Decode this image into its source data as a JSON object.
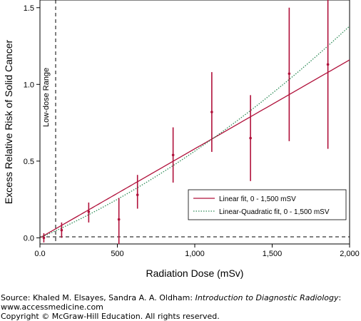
{
  "chart_data": {
    "type": "scatter",
    "xlabel": "Radiation Dose (mSv)",
    "ylabel": "Excess Relative Risk of Solid Cancer",
    "xlim": [
      0,
      2000
    ],
    "ylim": [
      -0.04,
      1.55
    ],
    "x_ticks": [
      0,
      500,
      1000,
      1500,
      2000
    ],
    "x_tick_labels": [
      "0.0",
      "500",
      "1,000",
      "1,500",
      "2,000"
    ],
    "y_ticks": [
      0.0,
      0.5,
      1.0,
      1.5
    ],
    "y_tick_labels": [
      "0.0",
      "0.5",
      "1.0",
      "1.5"
    ],
    "grid": false,
    "points": [
      {
        "x": 25,
        "y": 0.0,
        "lo": -0.03,
        "hi": 0.03
      },
      {
        "x": 140,
        "y": 0.05,
        "lo": 0.0,
        "hi": 0.1
      },
      {
        "x": 315,
        "y": 0.17,
        "lo": 0.1,
        "hi": 0.23
      },
      {
        "x": 510,
        "y": 0.12,
        "lo": -0.04,
        "hi": 0.26
      },
      {
        "x": 630,
        "y": 0.28,
        "lo": 0.19,
        "hi": 0.41
      },
      {
        "x": 860,
        "y": 0.54,
        "lo": 0.36,
        "hi": 0.72
      },
      {
        "x": 1110,
        "y": 0.82,
        "lo": 0.56,
        "hi": 1.08
      },
      {
        "x": 1360,
        "y": 0.65,
        "lo": 0.37,
        "hi": 0.93
      },
      {
        "x": 1610,
        "y": 1.07,
        "lo": 0.63,
        "hi": 1.5
      },
      {
        "x": 1860,
        "y": 1.13,
        "lo": 0.58,
        "hi": 1.56
      }
    ],
    "fits": [
      {
        "name": "Linear fit, 0 - 1,500 mSV",
        "model": "linear",
        "coef": [
          0.58
        ],
        "color": "#b0103a",
        "style": "solid"
      },
      {
        "name": "Linear-Quadratic fit, 0 - 1,500 mSV",
        "model": "linear-quadratic",
        "coef": [
          0.44,
          0.125
        ],
        "color": "#2e8b57",
        "style": "dotted"
      }
    ],
    "reference_line": {
      "y": 0.0,
      "style": "dashed"
    },
    "annotation": {
      "label": "Low-dose Range",
      "x": 100,
      "style": "dashed"
    },
    "legend_position": "lower-right",
    "point_color": "#b0103a"
  },
  "source": {
    "prefix": "Source: Khaled M. Elsayes, Sandra A. A. Oldham: ",
    "book": "Introduction to Diagnostic Radiology",
    "suffix": ":",
    "url": "www.accessmedicine.com",
    "copyright": "Copyright © McGraw-Hill Education. All rights reserved."
  }
}
